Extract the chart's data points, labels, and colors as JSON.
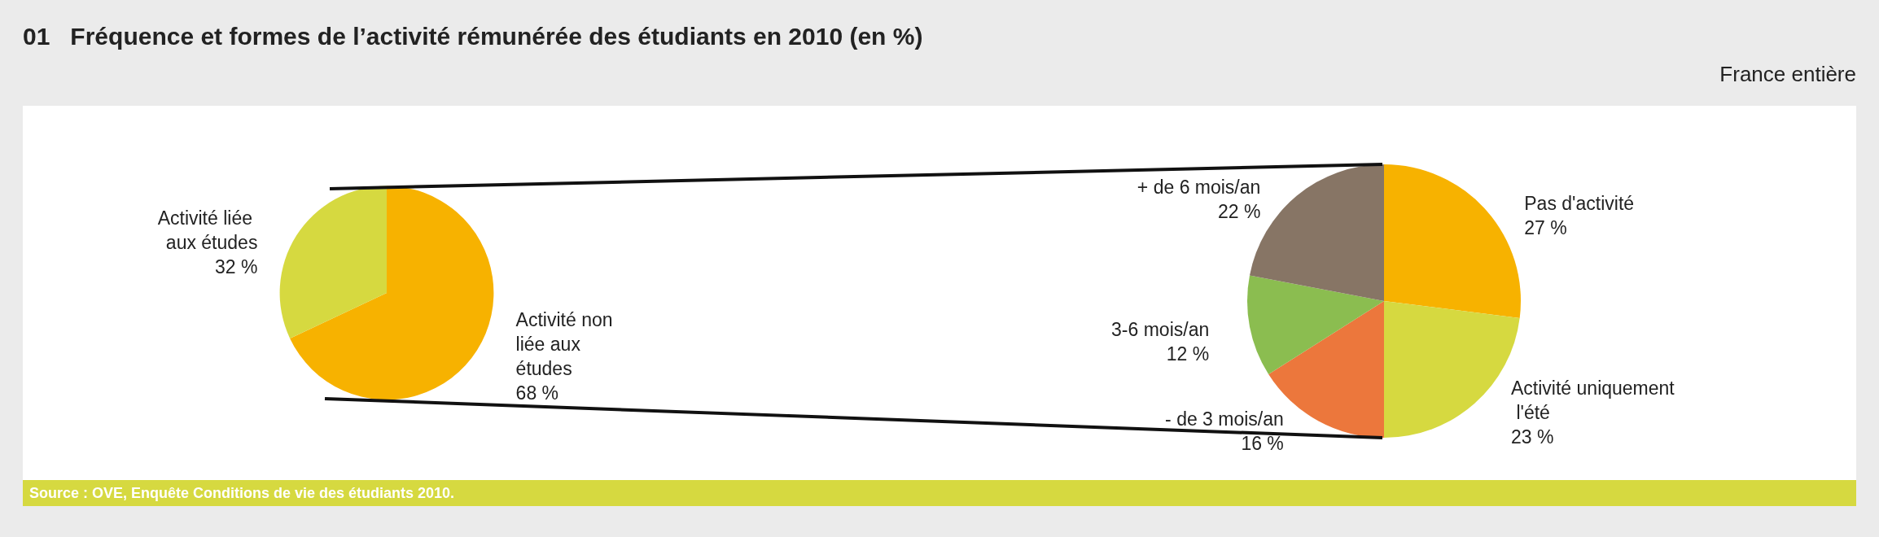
{
  "chart_data": [
    {
      "type": "pie",
      "title": "01   Fréquence et formes de l’activité rémunérée des étudiants en 2010 (en %)",
      "annotations": [
        "Source : OVE, Enquête Conditions de vie des étudiants 2010."
      ],
      "categories": [
        "Activité non liée aux études",
        "Activité liée aux études"
      ],
      "values": [
        68,
        32
      ],
      "value_labels": [
        "68 %",
        "32 %"
      ],
      "colors": [
        "#f7b200",
        "#d6d940"
      ]
    },
    {
      "type": "pie",
      "subtitle": "France entière",
      "categories": [
        "Pas d'activité",
        "Activité uniquement l'été",
        "- de 3 mois/an",
        "3-6 mois/an",
        "+ de 6 mois/an"
      ],
      "values": [
        27,
        23,
        16,
        12,
        22
      ],
      "value_labels": [
        "27 %",
        "23 %",
        "16 %",
        "12 %",
        "22 %"
      ],
      "colors": [
        "#f7b200",
        "#d6d940",
        "#ec773c",
        "#8bbd50",
        "#877565"
      ]
    }
  ]
}
